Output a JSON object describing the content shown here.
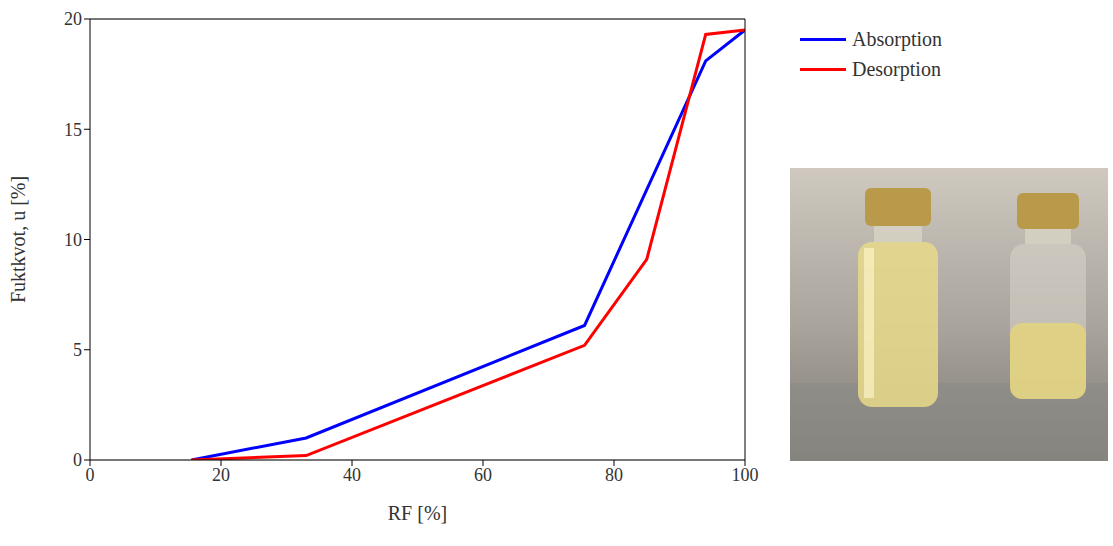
{
  "chart_data": {
    "type": "line",
    "x_label": "RF [%]",
    "y_label": "Fuktkvot, u [%]",
    "xlim": [
      0,
      100
    ],
    "xticks": [
      0,
      20,
      40,
      60,
      80,
      100
    ],
    "ylim": [
      0,
      20
    ],
    "yticks": [
      0,
      5,
      10,
      15,
      20
    ],
    "grid": true,
    "legend": "right",
    "series": [
      {
        "name": "Absorption",
        "color": "#0000ff",
        "x": [
          15.5,
          33,
          75.5,
          94,
          100
        ],
        "values": [
          0,
          1.0,
          6.1,
          18.1,
          19.5
        ]
      },
      {
        "name": "Desorption",
        "color": "#ff0000",
        "x": [
          15.5,
          33,
          75.5,
          85,
          94,
          100
        ],
        "values": [
          0,
          0.2,
          5.2,
          9.1,
          19.3,
          19.5
        ]
      }
    ]
  }
}
